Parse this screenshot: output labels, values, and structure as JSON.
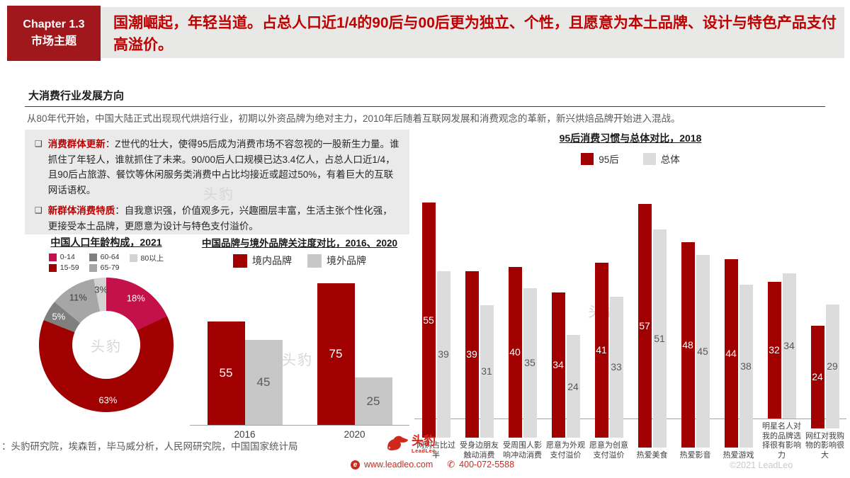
{
  "header": {
    "chapter_line1": "Chapter 1.3",
    "chapter_line2": "市场主题",
    "title": "国潮崛起，年轻当道。占总人口近1/4的90后与00后更为独立、个性，且愿意为本土品牌、设计与特色产品支付高溢价。"
  },
  "section": {
    "title": "大消费行业发展方向",
    "intro": "从80年代开始，中国大陆正式出现现代烘焙行业，初期以外资品牌为绝对主力，2010年后随着互联网发展和消费观念的革新，新兴烘焙品牌开始进入混战。",
    "bullet_marker": "❑",
    "bullets": [
      {
        "term": "消费群体更新",
        "text": "：Z世代的壮大，使得95后成为消费市场不容忽视的一股新生力量。谁抓住了年轻人，谁就抓住了未来。90/00后人口规模已达3.4亿人，占总人口近1/4，且90后占旅游、餐饮等休闲服务类消费中占比均接近或超过50%，有着巨大的互联网话语权。"
      },
      {
        "term": "新群体消费特质",
        "text": "：自我意识强，价值观多元，兴趣圈层丰富，生活主张个性化强，更接受本土品牌，更愿意为设计与特色支付溢价。"
      }
    ]
  },
  "watermark": "头豹",
  "chart_data": [
    {
      "type": "pie",
      "donut": true,
      "title": "中国人口年龄构成，2021",
      "labels": [
        "0-14",
        "15-59",
        "60-64",
        "65-79",
        "80以上"
      ],
      "values": [
        18,
        63,
        5,
        11,
        3
      ],
      "unit": "%",
      "colors": [
        "#C4114A",
        "#A00000",
        "#7F7F7F",
        "#A6A6A6",
        "#D2D2D2"
      ],
      "label_colors": [
        "#FFFFFF",
        "#FFFFFF",
        "#FFFFFF",
        "#3F3F3F",
        "#3F3F3F"
      ],
      "legend_position": "top"
    },
    {
      "type": "bar",
      "title": "中国品牌与境外品牌关注度对比，2016、2020",
      "categories": [
        "2016",
        "2020"
      ],
      "series": [
        {
          "name": "境内品牌",
          "color": "#A00000",
          "label_color": "#FFFFFF",
          "values": [
            55,
            75
          ]
        },
        {
          "name": "境外品牌",
          "color": "#C7C7C7",
          "label_color": "#595959",
          "values": [
            45,
            25
          ]
        }
      ],
      "ylim": [
        0,
        80
      ],
      "grid": false,
      "legend_position": "top"
    },
    {
      "type": "bar",
      "title": "95后消费习惯与总体对比，2018",
      "categories": [
        "网购占比过半",
        "受身边朋友触动消费",
        "受周围人影响冲动消费",
        "愿意为外观支付溢价",
        "愿意为创意支付溢价",
        "热爱美食",
        "热爱影音",
        "热爱游戏",
        "明星名人对我的品牌选择很有影响力",
        "网红对我购物的影响很大"
      ],
      "series": [
        {
          "name": "95后",
          "color": "#A00000",
          "label_color": "#FFFFFF",
          "values": [
            55,
            39,
            40,
            34,
            41,
            57,
            48,
            44,
            32,
            24
          ]
        },
        {
          "name": "总体",
          "color": "#DCDCDC",
          "label_color": "#595959",
          "values": [
            39,
            31,
            35,
            24,
            33,
            51,
            45,
            38,
            34,
            29
          ]
        }
      ],
      "ylim": [
        0,
        60
      ],
      "grid": false,
      "legend_position": "top"
    }
  ],
  "footer": {
    "source": "：头豹研究院，埃森哲，毕马威分析，人民网研究院，中国国家统计局",
    "logo_text": "头豹",
    "logo_sub": "LeadLeo",
    "website_icon": "e",
    "website": "www.leadleo.com",
    "phone_icon": "✆",
    "phone": "400-072-5588",
    "copyright": "©2021 LeadLeo"
  }
}
